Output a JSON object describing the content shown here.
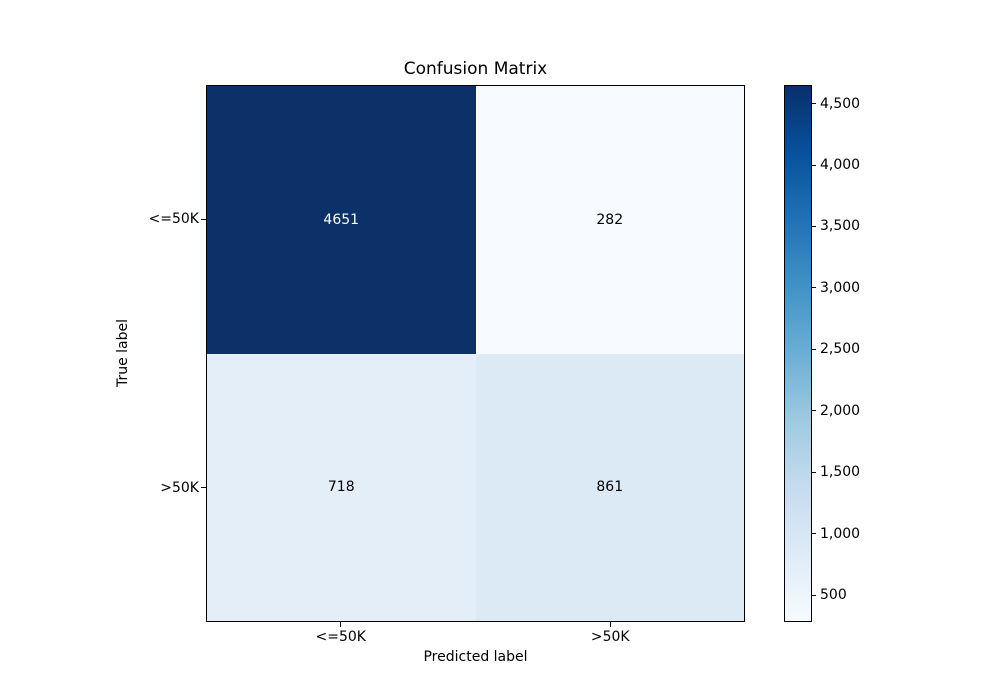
{
  "chart_data": {
    "type": "heatmap",
    "title": "Confusion Matrix",
    "xlabel": "Predicted label",
    "ylabel": "True label",
    "x_tick_labels": [
      "<=50K",
      ">50K"
    ],
    "y_tick_labels": [
      "<=50K",
      ">50K"
    ],
    "matrix": [
      [
        4651,
        282
      ],
      [
        718,
        861
      ]
    ],
    "cell_labels": [
      [
        "4651",
        "282"
      ],
      [
        "718",
        "861"
      ]
    ],
    "cell_colors": [
      [
        "#0c3168",
        "#f7fbff"
      ],
      [
        "#e3eef9",
        "#dceaf6"
      ]
    ],
    "cell_text_colors": [
      [
        "#ffffff",
        "#000000"
      ],
      [
        "#000000",
        "#000000"
      ]
    ],
    "grid": false,
    "legend": false,
    "colormap": "Blues",
    "colorbar": {
      "position": "right",
      "vmin": 282,
      "vmax": 4651,
      "tick_values": [
        500,
        1000,
        1500,
        2000,
        2500,
        3000,
        3500,
        4000,
        4500
      ],
      "tick_labels": [
        "500",
        "1,000",
        "1,500",
        "2,000",
        "2,500",
        "3,000",
        "3,500",
        "4,000",
        "4,500"
      ],
      "gradient_stops_bottom_to_top": [
        "#f7fbff",
        "#deebf7",
        "#c6dbef",
        "#9ecae1",
        "#6baed6",
        "#4292c6",
        "#2171b5",
        "#08519c",
        "#08306b"
      ]
    }
  }
}
